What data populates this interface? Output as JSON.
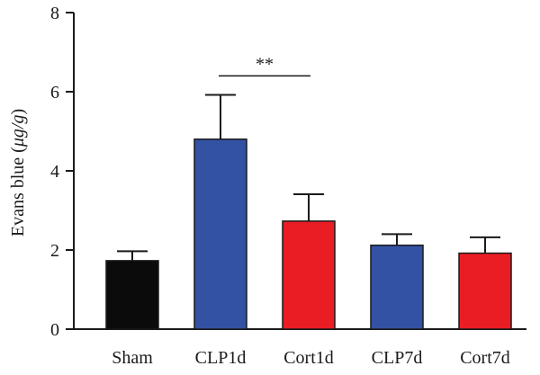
{
  "chart_data": {
    "type": "bar",
    "title": "",
    "xlabel": "",
    "ylabel": "Evans blue (",
    "ylabel_unit": "μg/g",
    "ylabel_close": ")",
    "ylim": [
      0,
      8
    ],
    "yticks": [
      "0",
      "2",
      "4",
      "6",
      "8"
    ],
    "categories": [
      "Sham",
      "CLP1d",
      "Cort1d",
      "CLP7d",
      "Cort7d"
    ],
    "values": [
      1.73,
      4.8,
      2.73,
      2.12,
      1.92
    ],
    "errors": [
      0.24,
      1.12,
      0.68,
      0.28,
      0.4
    ],
    "colors": [
      "#0b0b0c",
      "#3452a3",
      "#ea1d24",
      "#3452a3",
      "#ea1d24"
    ],
    "significance": [
      {
        "from": "CLP1d",
        "to": "Cort1d",
        "label": "**",
        "y": 6.4
      }
    ],
    "grid": false,
    "legend": "none"
  }
}
